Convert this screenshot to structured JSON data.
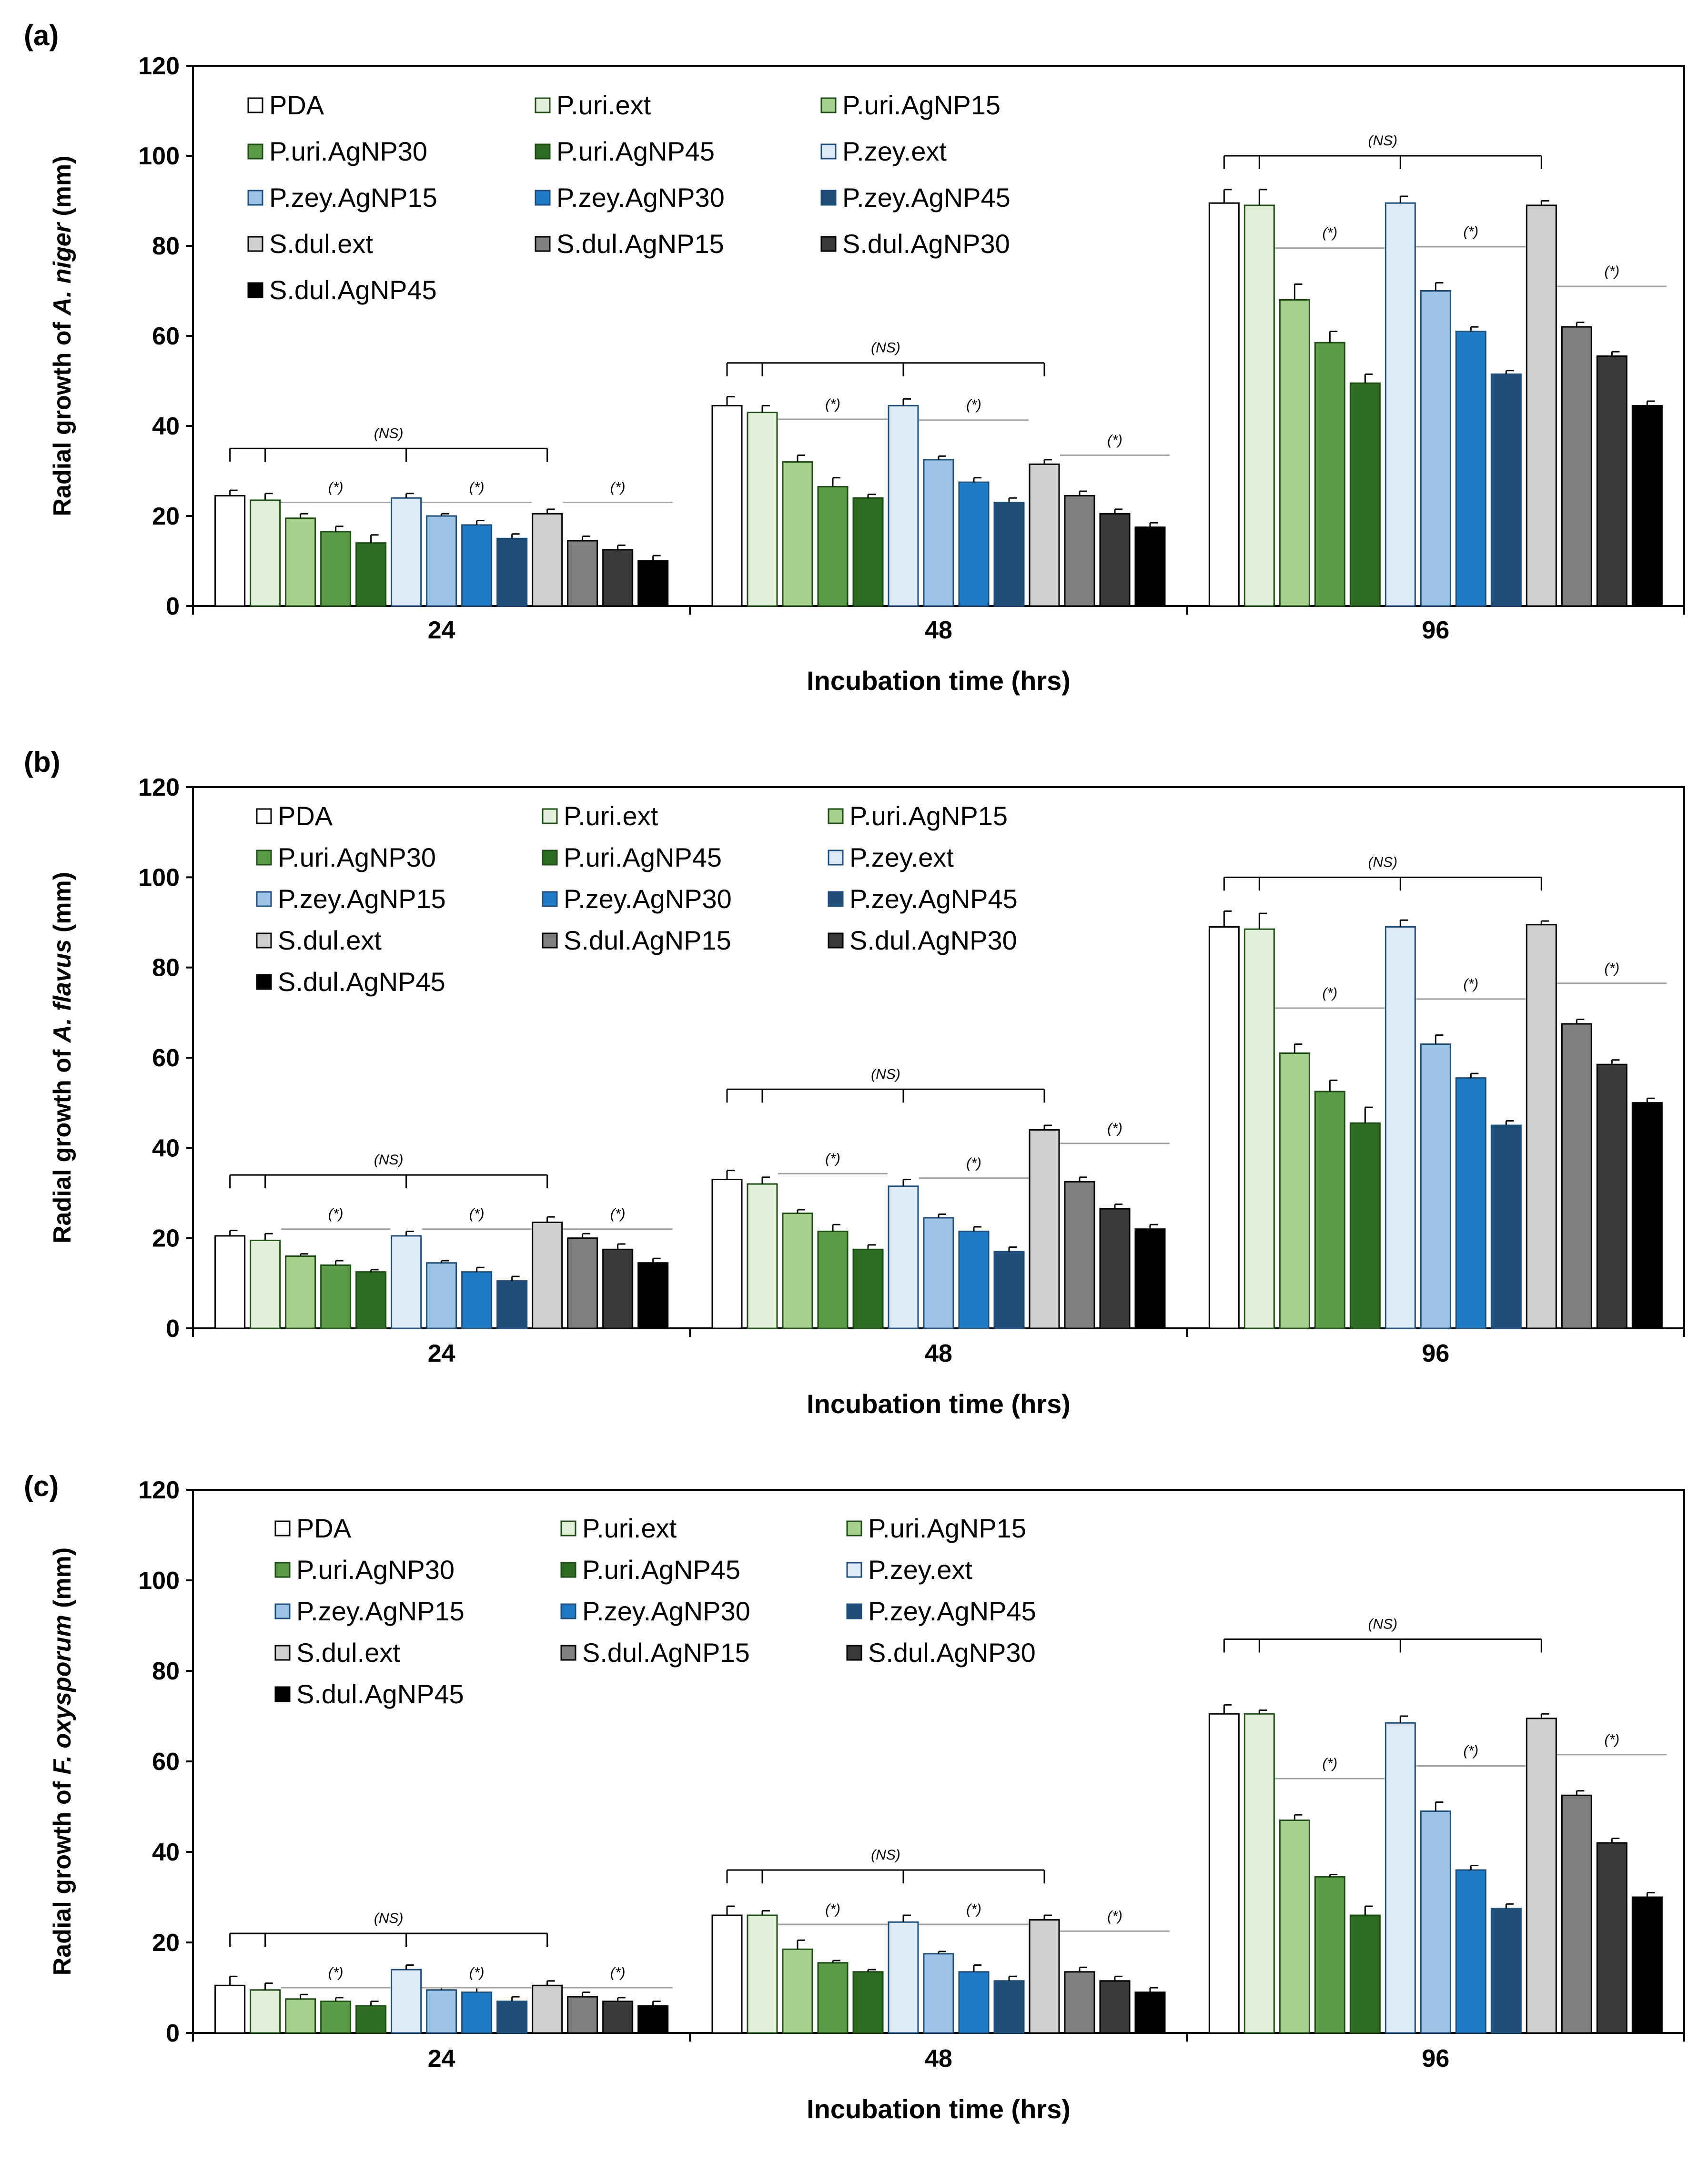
{
  "colors": {
    "PDA": "#ffffff",
    "P.uri.ext": "#e2f0d9",
    "P.uri.AgNP15": "#a9d18e",
    "P.uri.AgNP30": "#5b9a46",
    "P.uri.AgNP45": "#2e6b22",
    "P.zey.ext": "#deebf7",
    "P.zey.AgNP15": "#9dc3e6",
    "P.zey.AgNP30": "#1f7bc6",
    "P.zey.AgNP45": "#1f4e79",
    "S.dul.ext": "#d0cece",
    "S.dul.AgNP15": "#7f7f7f",
    "S.dul.AgNP30": "#3a3838",
    "S.dul.AgNP45": "#000000"
  },
  "chart_data": [
    {
      "panel_label": "(a)",
      "type": "bar",
      "ylabel_prefix": "Radial growth of ",
      "ylabel_species": "A. niger",
      "ylabel_suffix": " (mm)",
      "xlabel": "Incubation time (hrs)",
      "ylim": [
        0,
        120
      ],
      "yticks": [
        "0",
        "20",
        "40",
        "60",
        "80",
        "100",
        "120"
      ],
      "categories": [
        "24",
        "48",
        "96"
      ],
      "series": [
        {
          "name": "PDA",
          "values": [
            24.5,
            44.5,
            89.5
          ],
          "errors": [
            1.2,
            2.0,
            3.0
          ]
        },
        {
          "name": "P.uri.ext",
          "values": [
            23.5,
            43.0,
            89.0
          ],
          "errors": [
            1.5,
            1.5,
            3.5
          ]
        },
        {
          "name": "P.uri.AgNP15",
          "values": [
            19.5,
            32.0,
            68.0
          ],
          "errors": [
            1.0,
            1.5,
            3.5
          ]
        },
        {
          "name": "P.uri.AgNP30",
          "values": [
            16.5,
            26.5,
            58.5
          ],
          "errors": [
            1.2,
            2.0,
            2.5
          ]
        },
        {
          "name": "P.uri.AgNP45",
          "values": [
            14.0,
            24.0,
            49.5
          ],
          "errors": [
            1.8,
            0.8,
            2.0
          ]
        },
        {
          "name": "P.zey.ext",
          "values": [
            24.0,
            44.5,
            89.5
          ],
          "errors": [
            1.0,
            1.5,
            1.5
          ]
        },
        {
          "name": "P.zey.AgNP15",
          "values": [
            20.0,
            32.5,
            70.0
          ],
          "errors": [
            0.5,
            0.8,
            1.8
          ]
        },
        {
          "name": "P.zey.AgNP30",
          "values": [
            18.0,
            27.5,
            61.0
          ],
          "errors": [
            1.0,
            1.0,
            1.0
          ]
        },
        {
          "name": "P.zey.AgNP45",
          "values": [
            15.0,
            23.0,
            51.5
          ],
          "errors": [
            1.0,
            1.0,
            0.8
          ]
        },
        {
          "name": "S.dul.ext",
          "values": [
            20.5,
            31.5,
            89.0
          ],
          "errors": [
            1.0,
            1.0,
            1.0
          ]
        },
        {
          "name": "S.dul.AgNP15",
          "values": [
            14.5,
            24.5,
            62.0
          ],
          "errors": [
            1.0,
            1.0,
            1.0
          ]
        },
        {
          "name": "S.dul.AgNP30",
          "values": [
            12.5,
            20.5,
            55.5
          ],
          "errors": [
            1.0,
            1.0,
            1.0
          ]
        },
        {
          "name": "S.dul.AgNP45",
          "values": [
            10.0,
            17.5,
            44.5
          ],
          "errors": [
            1.2,
            1.0,
            1.0
          ]
        }
      ],
      "annotations": {
        "ns_text": "(NS)",
        "star_text": "(*)",
        "ns_heights": [
          35,
          54,
          100
        ]
      }
    },
    {
      "panel_label": "(b)",
      "type": "bar",
      "ylabel_prefix": "Radial growth of ",
      "ylabel_species": "A. flavus",
      "ylabel_suffix": " (mm)",
      "xlabel": "Incubation time (hrs)",
      "ylim": [
        0,
        120
      ],
      "yticks": [
        "0",
        "20",
        "40",
        "60",
        "80",
        "100",
        "120"
      ],
      "categories": [
        "24",
        "48",
        "96"
      ],
      "series": [
        {
          "name": "PDA",
          "values": [
            20.5,
            33.0,
            89.0
          ],
          "errors": [
            1.2,
            2.0,
            3.5
          ]
        },
        {
          "name": "P.uri.ext",
          "values": [
            19.5,
            32.0,
            88.5
          ],
          "errors": [
            1.5,
            1.5,
            3.5
          ]
        },
        {
          "name": "P.uri.AgNP15",
          "values": [
            16.0,
            25.5,
            61.0
          ],
          "errors": [
            0.5,
            0.8,
            2.0
          ]
        },
        {
          "name": "P.uri.AgNP30",
          "values": [
            14.0,
            21.5,
            52.5
          ],
          "errors": [
            1.0,
            1.5,
            2.5
          ]
        },
        {
          "name": "P.uri.AgNP45",
          "values": [
            12.5,
            17.5,
            45.5
          ],
          "errors": [
            0.5,
            1.0,
            3.5
          ]
        },
        {
          "name": "P.zey.ext",
          "values": [
            20.5,
            31.5,
            89.0
          ],
          "errors": [
            1.0,
            1.5,
            1.5
          ]
        },
        {
          "name": "P.zey.AgNP15",
          "values": [
            14.5,
            24.5,
            63.0
          ],
          "errors": [
            0.5,
            0.8,
            2.0
          ]
        },
        {
          "name": "P.zey.AgNP30",
          "values": [
            12.5,
            21.5,
            55.5
          ],
          "errors": [
            1.0,
            1.0,
            1.0
          ]
        },
        {
          "name": "P.zey.AgNP45",
          "values": [
            10.5,
            17.0,
            45.0
          ],
          "errors": [
            1.0,
            1.0,
            1.0
          ]
        },
        {
          "name": "S.dul.ext",
          "values": [
            23.5,
            44.0,
            89.5
          ],
          "errors": [
            1.2,
            1.0,
            0.8
          ]
        },
        {
          "name": "S.dul.AgNP15",
          "values": [
            20.0,
            32.5,
            67.5
          ],
          "errors": [
            1.0,
            1.0,
            1.0
          ]
        },
        {
          "name": "S.dul.AgNP30",
          "values": [
            17.5,
            26.5,
            58.5
          ],
          "errors": [
            1.2,
            1.0,
            1.0
          ]
        },
        {
          "name": "S.dul.AgNP45",
          "values": [
            14.5,
            22.0,
            50.0
          ],
          "errors": [
            1.0,
            1.0,
            1.0
          ]
        }
      ],
      "annotations": {
        "ns_text": "(NS)",
        "star_text": "(*)",
        "ns_heights": [
          34,
          53,
          100
        ]
      }
    },
    {
      "panel_label": "(c)",
      "type": "bar",
      "ylabel_prefix": "Radial growth of ",
      "ylabel_species": "F. oxysporum",
      "ylabel_suffix": " (mm)",
      "xlabel": "Incubation time (hrs)",
      "ylim": [
        0,
        120
      ],
      "yticks": [
        "0",
        "20",
        "40",
        "60",
        "80",
        "100",
        "120"
      ],
      "categories": [
        "24",
        "48",
        "96"
      ],
      "series": [
        {
          "name": "PDA",
          "values": [
            10.5,
            26.0,
            70.5
          ],
          "errors": [
            2.0,
            2.0,
            2.0
          ]
        },
        {
          "name": "P.uri.ext",
          "values": [
            9.5,
            26.0,
            70.5
          ],
          "errors": [
            1.5,
            1.0,
            0.8
          ]
        },
        {
          "name": "P.uri.AgNP15",
          "values": [
            7.5,
            18.5,
            47.0
          ],
          "errors": [
            1.0,
            2.0,
            1.2
          ]
        },
        {
          "name": "P.uri.AgNP30",
          "values": [
            7.0,
            15.5,
            34.5
          ],
          "errors": [
            0.8,
            0.5,
            0.5
          ]
        },
        {
          "name": "P.uri.AgNP45",
          "values": [
            6.0,
            13.5,
            26.0
          ],
          "errors": [
            1.0,
            0.5,
            2.0
          ]
        },
        {
          "name": "P.zey.ext",
          "values": [
            14.0,
            24.5,
            68.5
          ],
          "errors": [
            1.0,
            1.5,
            1.5
          ]
        },
        {
          "name": "P.zey.AgNP15",
          "values": [
            9.5,
            17.5,
            49.0
          ],
          "errors": [
            0.5,
            0.5,
            2.0
          ]
        },
        {
          "name": "P.zey.AgNP30",
          "values": [
            9.0,
            13.5,
            36.0
          ],
          "errors": [
            1.0,
            1.5,
            1.0
          ]
        },
        {
          "name": "P.zey.AgNP45",
          "values": [
            7.0,
            11.5,
            27.5
          ],
          "errors": [
            1.0,
            1.0,
            1.0
          ]
        },
        {
          "name": "S.dul.ext",
          "values": [
            10.5,
            25.0,
            69.5
          ],
          "errors": [
            1.0,
            1.0,
            1.0
          ]
        },
        {
          "name": "S.dul.AgNP15",
          "values": [
            8.0,
            13.5,
            52.5
          ],
          "errors": [
            1.0,
            1.0,
            1.0
          ]
        },
        {
          "name": "S.dul.AgNP30",
          "values": [
            7.0,
            11.5,
            42.0
          ],
          "errors": [
            0.8,
            1.0,
            1.0
          ]
        },
        {
          "name": "S.dul.AgNP45",
          "values": [
            6.0,
            9.0,
            30.0
          ],
          "errors": [
            1.0,
            1.0,
            1.0
          ]
        }
      ],
      "annotations": {
        "ns_text": "(NS)",
        "star_text": "(*)",
        "ns_heights": [
          22,
          36,
          87
        ]
      }
    }
  ]
}
